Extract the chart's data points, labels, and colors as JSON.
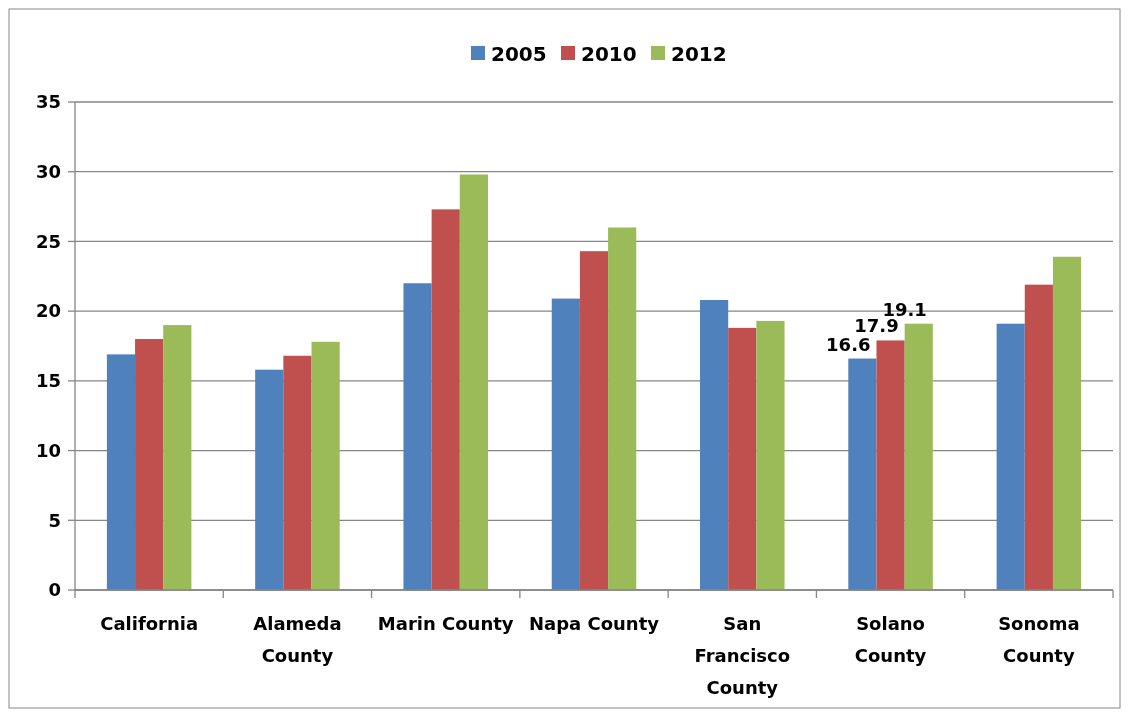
{
  "chart_data": {
    "type": "bar",
    "categories": [
      "California",
      "Alameda County",
      "Marin County",
      "Napa County",
      "San Francisco County",
      "Solano County",
      "Sonoma County"
    ],
    "series": [
      {
        "name": "2005",
        "color": "#4f81bd",
        "values": [
          16.9,
          15.8,
          22.0,
          20.9,
          20.8,
          16.6,
          19.1
        ],
        "value_labels": [
          null,
          null,
          null,
          null,
          null,
          "16.6",
          null
        ]
      },
      {
        "name": "2010",
        "color": "#c0504d",
        "values": [
          18.0,
          16.8,
          27.3,
          24.3,
          18.8,
          17.9,
          21.9
        ],
        "value_labels": [
          null,
          null,
          null,
          null,
          null,
          "17.9",
          null
        ]
      },
      {
        "name": "2012",
        "color": "#9bbb59",
        "values": [
          19.0,
          17.8,
          29.8,
          26.0,
          19.3,
          19.1,
          23.9
        ],
        "value_labels": [
          null,
          null,
          null,
          null,
          null,
          "19.1",
          null
        ]
      }
    ],
    "ylim": [
      0,
      35
    ],
    "yticks": [
      0,
      5,
      10,
      15,
      20,
      25,
      30,
      35
    ],
    "grid": "y",
    "legend": "top"
  }
}
